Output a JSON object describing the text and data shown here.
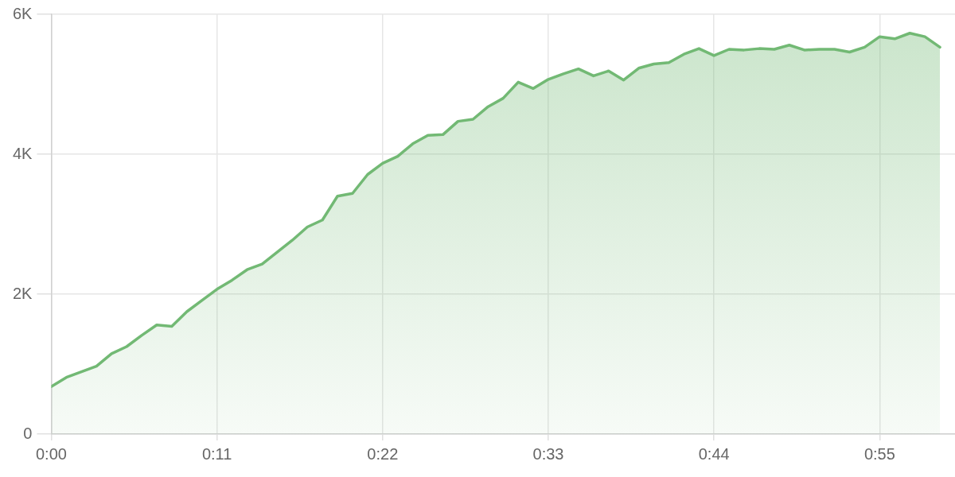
{
  "chart_data": {
    "type": "area",
    "color": "#72b974",
    "marker": "none",
    "grid": true,
    "x": [
      0,
      1,
      2,
      3,
      4,
      5,
      6,
      7,
      8,
      9,
      10,
      11,
      12,
      13,
      14,
      15,
      16,
      17,
      18,
      19,
      20,
      21,
      22,
      23,
      24,
      25,
      26,
      27,
      28,
      29,
      30,
      31,
      32,
      33,
      34,
      35,
      36,
      37,
      38,
      39,
      40,
      41,
      42,
      43,
      44,
      45,
      46,
      47,
      48,
      49,
      50,
      51,
      52,
      53,
      54,
      55,
      56,
      57,
      58,
      59
    ],
    "values": [
      680,
      810,
      890,
      970,
      1150,
      1250,
      1410,
      1560,
      1540,
      1750,
      1910,
      2070,
      2200,
      2350,
      2430,
      2600,
      2770,
      2960,
      3060,
      3400,
      3440,
      3710,
      3870,
      3970,
      4150,
      4270,
      4280,
      4470,
      4500,
      4680,
      4800,
      5030,
      4940,
      5070,
      5150,
      5220,
      5120,
      5190,
      5060,
      5230,
      5290,
      5310,
      5430,
      5510,
      5410,
      5500,
      5490,
      5510,
      5500,
      5560,
      5490,
      5500,
      5500,
      5460,
      5530,
      5680,
      5650,
      5730,
      5680,
      5530
    ],
    "xlim": [
      0,
      60
    ],
    "xticks": [
      {
        "value": 0,
        "label": "0:00"
      },
      {
        "value": 11,
        "label": "0:11"
      },
      {
        "value": 22,
        "label": "0:22"
      },
      {
        "value": 33,
        "label": "0:33"
      },
      {
        "value": 44,
        "label": "0:44"
      },
      {
        "value": 55,
        "label": "0:55"
      }
    ],
    "ylim": [
      0,
      6000
    ],
    "yticks": [
      0,
      {
        "value": 2000,
        "label": "2K"
      },
      {
        "value": 4000,
        "label": "4K"
      },
      {
        "value": 6000,
        "label": "6K"
      }
    ]
  }
}
